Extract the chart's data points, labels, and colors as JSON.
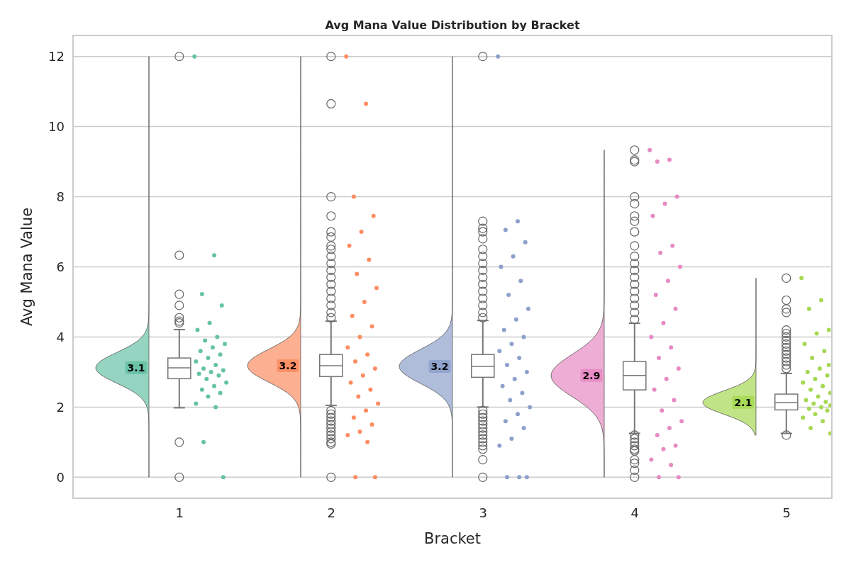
{
  "chart_data": {
    "type": "box",
    "title": "Avg Mana Value Distribution by Bracket",
    "xlabel": "Bracket",
    "ylabel": "Avg Mana Value",
    "x": [
      1,
      2,
      3,
      4,
      5
    ],
    "xlim": [
      0.3,
      5.3
    ],
    "xticks": [
      1,
      2,
      3,
      4,
      5
    ],
    "ylim": [
      -0.6,
      12.6
    ],
    "yticks": [
      0,
      2,
      4,
      6,
      8,
      10,
      12
    ],
    "grid": "y",
    "boxes": [
      {
        "low": 1.98,
        "q1": 2.81,
        "median": 3.12,
        "q3": 3.4,
        "high": 4.21,
        "outliers": [
          12,
          6.33,
          5.22,
          4.9,
          4.55,
          4.45,
          4.4,
          1,
          0
        ]
      },
      {
        "low": 2.05,
        "q1": 2.87,
        "median": 3.18,
        "q3": 3.5,
        "high": 4.45,
        "outliers": [
          12,
          10.65,
          8,
          7.45,
          7,
          6.85,
          6.6,
          6.5,
          6.3,
          6.1,
          5.9,
          5.7,
          5.5,
          5.3,
          5.1,
          4.9,
          4.7,
          4.55,
          1.9,
          1.8,
          1.7,
          1.6,
          1.5,
          1.4,
          1.3,
          1.2,
          1.1,
          1,
          0.95,
          0
        ]
      },
      {
        "low": 2.0,
        "q1": 2.85,
        "median": 3.16,
        "q3": 3.5,
        "high": 4.47,
        "outliers": [
          12,
          7.3,
          7.1,
          7,
          6.8,
          6.5,
          6.3,
          6.1,
          5.9,
          5.7,
          5.5,
          5.3,
          5.1,
          4.9,
          4.7,
          4.55,
          1.9,
          1.8,
          1.7,
          1.6,
          1.5,
          1.4,
          1.3,
          1.2,
          1.1,
          1,
          0.9,
          0.8,
          0.5,
          0
        ]
      },
      {
        "low": 1.25,
        "q1": 2.49,
        "median": 2.9,
        "q3": 3.3,
        "high": 4.39,
        "outliers": [
          9.33,
          9.05,
          9,
          8,
          7.8,
          7.45,
          7.3,
          7,
          6.6,
          6.3,
          6.1,
          5.9,
          5.7,
          5.5,
          5.3,
          5.1,
          4.9,
          4.7,
          4.5,
          1.2,
          1.1,
          1,
          0.9,
          0.8,
          0.75,
          0.5,
          0.4,
          0.2,
          0
        ]
      },
      {
        "low": 1.25,
        "q1": 1.92,
        "median": 2.13,
        "q3": 2.37,
        "high": 2.96,
        "outliers": [
          5.68,
          5.05,
          4.8,
          4.7,
          4.2,
          4.1,
          4,
          3.9,
          3.8,
          3.7,
          3.6,
          3.5,
          3.4,
          3.3,
          3.2,
          3.1,
          1.2
        ]
      }
    ],
    "series": [
      {
        "type": "scatter",
        "color": "#66c2a5",
        "x": [
          1.1,
          1.23,
          1.15,
          1.28,
          1.2,
          1.12,
          1.25,
          1.17,
          1.3,
          1.22,
          1.14,
          1.27,
          1.19,
          1.11,
          1.24,
          1.16,
          1.29,
          1.21,
          1.13,
          1.26,
          1.18,
          1.31,
          1.23,
          1.15,
          1.27,
          1.19,
          1.11,
          1.24,
          1.16,
          1.29
        ],
        "values": [
          12,
          6.33,
          5.22,
          4.9,
          4.4,
          4.2,
          4,
          3.9,
          3.8,
          3.7,
          3.6,
          3.5,
          3.4,
          3.3,
          3.2,
          3.1,
          3.05,
          3,
          2.95,
          2.9,
          2.8,
          2.7,
          2.6,
          2.5,
          2.4,
          2.3,
          2.1,
          2,
          1,
          0
        ]
      },
      {
        "type": "scatter",
        "color": "#fc8d62",
        "x": [
          2.1,
          2.23,
          2.15,
          2.28,
          2.2,
          2.12,
          2.25,
          2.17,
          2.3,
          2.22,
          2.14,
          2.27,
          2.19,
          2.11,
          2.24,
          2.16,
          2.29,
          2.21,
          2.13,
          2.26,
          2.18,
          2.31,
          2.23,
          2.15,
          2.27,
          2.19,
          2.11,
          2.24,
          2.16,
          2.29
        ],
        "values": [
          12,
          10.65,
          8,
          7.45,
          7,
          6.6,
          6.2,
          5.8,
          5.4,
          5,
          4.6,
          4.3,
          4,
          3.7,
          3.5,
          3.3,
          3.1,
          2.9,
          2.7,
          2.5,
          2.3,
          2.1,
          1.9,
          1.7,
          1.5,
          1.3,
          1.2,
          1,
          0,
          0
        ]
      },
      {
        "type": "scatter",
        "color": "#8da0cb",
        "x": [
          3.1,
          3.23,
          3.15,
          3.28,
          3.2,
          3.12,
          3.25,
          3.17,
          3.3,
          3.22,
          3.14,
          3.27,
          3.19,
          3.11,
          3.24,
          3.16,
          3.29,
          3.21,
          3.13,
          3.26,
          3.18,
          3.31,
          3.23,
          3.15,
          3.27,
          3.19,
          3.11,
          3.24,
          3.16,
          3.29
        ],
        "values": [
          12,
          7.3,
          7.05,
          6.7,
          6.3,
          6,
          5.6,
          5.2,
          4.8,
          4.5,
          4.2,
          4,
          3.8,
          3.6,
          3.4,
          3.2,
          3,
          2.8,
          2.6,
          2.4,
          2.2,
          2,
          1.8,
          1.6,
          1.4,
          1.1,
          0.9,
          0,
          0,
          0
        ]
      },
      {
        "type": "scatter",
        "color": "#e78ac3",
        "x": [
          4.1,
          4.23,
          4.15,
          4.28,
          4.2,
          4.12,
          4.25,
          4.17,
          4.3,
          4.22,
          4.14,
          4.27,
          4.19,
          4.11,
          4.24,
          4.16,
          4.29,
          4.21,
          4.13,
          4.26,
          4.18,
          4.31,
          4.23,
          4.15,
          4.27,
          4.19,
          4.11,
          4.24,
          4.16,
          4.29
        ],
        "values": [
          9.33,
          9.05,
          9,
          8,
          7.8,
          7.45,
          6.6,
          6.4,
          6,
          5.6,
          5.2,
          4.8,
          4.4,
          4,
          3.7,
          3.4,
          3.1,
          2.8,
          2.5,
          2.2,
          1.9,
          1.6,
          1.4,
          1.2,
          0.9,
          0.8,
          0.5,
          0.35,
          0,
          0
        ]
      },
      {
        "type": "scatter",
        "color": "#a6d854",
        "x": [
          5.1,
          5.23,
          5.15,
          5.28,
          5.2,
          5.12,
          5.25,
          5.17,
          5.28,
          5.22,
          5.14,
          5.27,
          5.19,
          5.11,
          5.24,
          5.16,
          5.29,
          5.21,
          5.13,
          5.26,
          5.18,
          5.29,
          5.23,
          5.15,
          5.27,
          5.19,
          5.11,
          5.24,
          5.16,
          5.29
        ],
        "values": [
          5.68,
          5.05,
          4.8,
          4.2,
          4.1,
          3.8,
          3.6,
          3.4,
          3.2,
          3.1,
          3,
          2.9,
          2.8,
          2.7,
          2.6,
          2.5,
          2.4,
          2.3,
          2.2,
          2.15,
          2.1,
          2.05,
          2,
          1.95,
          1.9,
          1.8,
          1.7,
          1.6,
          1.4,
          1.25
        ]
      }
    ],
    "annotations": [
      "3.1",
      "3.2",
      "3.2",
      "2.9",
      "2.1"
    ]
  }
}
